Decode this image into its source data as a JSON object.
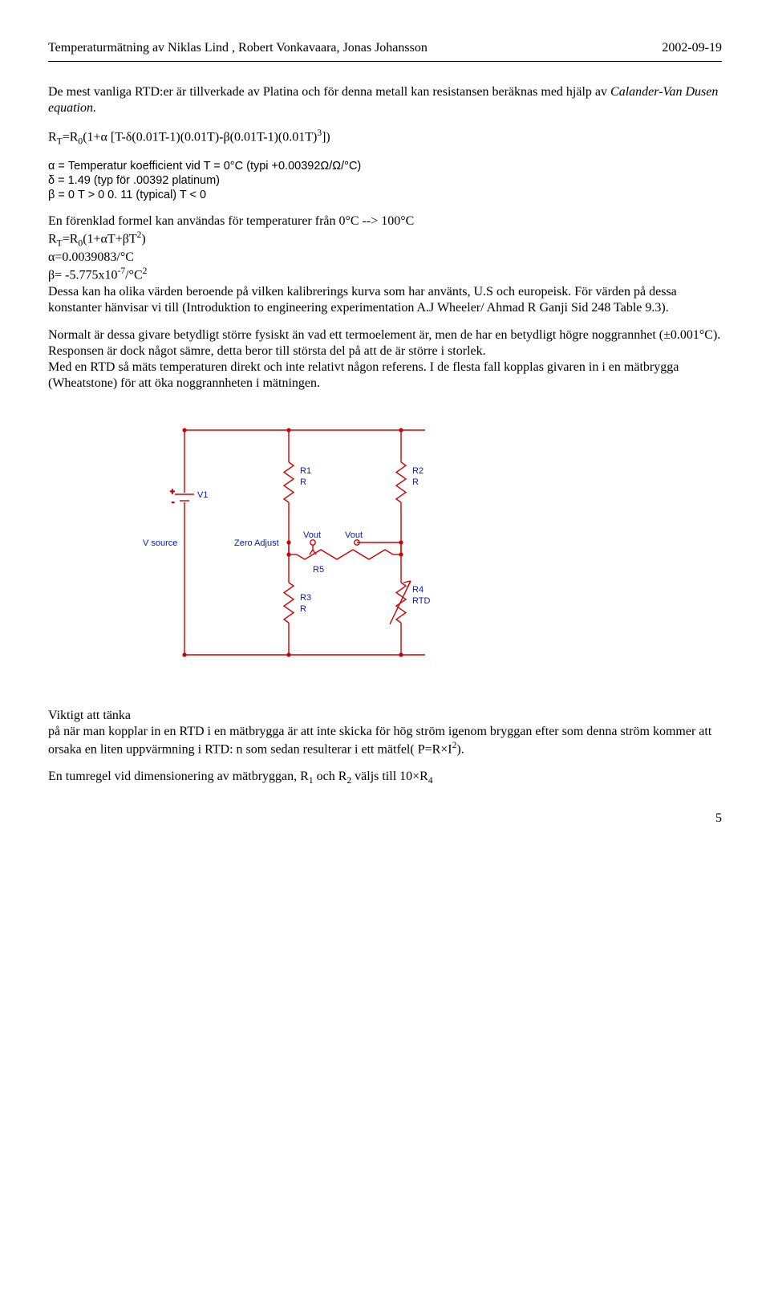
{
  "header": {
    "left": "Temperaturmätning  av  Niklas Lind , Robert Vonkavaara,  Jonas Johansson",
    "right": "2002-09-19"
  },
  "p1_a": "De mest vanliga RTD:er är tillverkade av Platina och för denna metall kan resistansen beräknas med hjälp av ",
  "p1_b_italic": "Calander-Van Dusen equation.",
  "formula1": {
    "pre": "R",
    "sub1": "T",
    "mid1": "=R",
    "sub2": "0",
    "mid2": "(1+α [T-δ(0.01T-1)(0.01T)-β(0.01T-1)(0.01T)",
    "sup": "3",
    "post": "])"
  },
  "defs": {
    "alpha": "α = Temperatur koefficient vid T = 0°C   (typi +0.00392Ω/Ω/°C)",
    "delta": "δ = 1.49 (typ för .00392 platinum)",
    "beta": "β = 0 T > 0   0. 11 (typical) T < 0"
  },
  "p2_line1": "En förenklad formel kan användas för temperaturer från 0°C --> 100°C",
  "formula2": {
    "pre": "R",
    "sub1": "T",
    "mid1": "=R",
    "sub2": "0",
    "mid2": "(1+αT+βT",
    "sup": "2",
    "post": ")"
  },
  "alpha_val": "α=0.0039083/°C",
  "beta_val": {
    "pre": "β= -5.775x10",
    "sup1": "-7",
    "mid": "/°C",
    "sup2": "2"
  },
  "p3": "Dessa kan ha olika värden beroende på vilken kalibrerings kurva som har använts, U.S och europeisk. För värden på dessa konstanter hänvisar vi till (Introduktion to engineering experimentation A.J Wheeler/ Ahmad R Ganji Sid 248 Table 9.3).",
  "p4": "Normalt är dessa givare betydligt större fysiskt än vad ett termoelement är, men de har en betydligt högre noggrannhet (±0.001°C). Responsen är dock något sämre, detta beror till största del på att de är större i storlek.",
  "p5": "Med en RTD så mäts temperaturen direkt och inte relativt någon referens. I de flesta fall kopplas givaren in i en mätbrygga (Wheatstone) för att öka noggrannheten i mätningen.",
  "p6_a": "Viktigt att tänka",
  "p6_b": "på när man kopplar in en RTD i en mätbrygga är att inte skicka för hög ström igenom bryggan efter som denna ström kommer att orsaka en liten uppvärmning i RTD: n som sedan resulterar i ett mätfel( P=R×I",
  "p6_sup": "2",
  "p6_c": ").",
  "p7": {
    "a": "En tumregel vid dimensionering av mätbryggan, R",
    "s1": "1",
    "b": " och R",
    "s2": "2",
    "c": " väljs till 10×R",
    "s3": "4"
  },
  "circuit": {
    "stroke": "#d10000",
    "node_fill": "#d10000",
    "label_color": "#0019b7",
    "labels": {
      "V1": "V1",
      "Vsource": "V source",
      "ZeroAdjust": "Zero Adjust",
      "Vout1": "Vout",
      "Vout2": "Vout",
      "R1": "R1",
      "R1b": "R",
      "R2": "R2",
      "R2b": "R",
      "R3": "R3",
      "R3b": "R",
      "R4": "R4",
      "R4b": "RTD",
      "R5": "R5"
    }
  },
  "page_number": "5"
}
